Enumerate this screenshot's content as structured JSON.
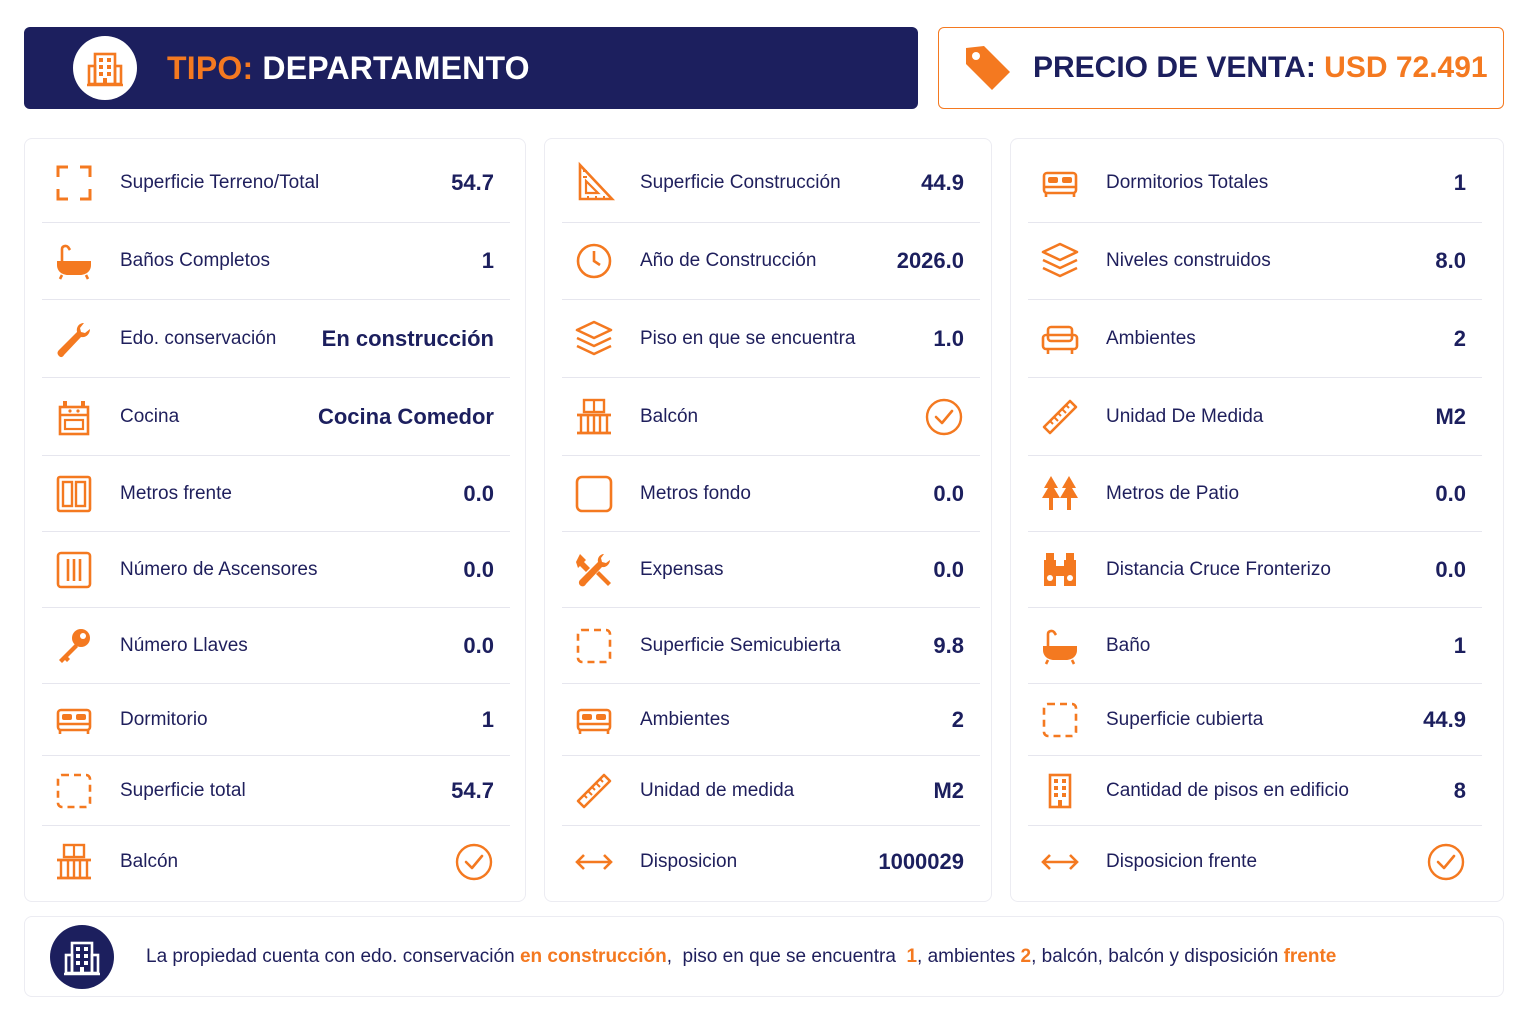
{
  "header": {
    "tipo_label": "TIPO:",
    "tipo_value": "DEPARTAMENTO",
    "icon": "building-icon"
  },
  "price": {
    "label": "PRECIO DE VENTA:",
    "value": "USD 72.491",
    "icon": "price-tag-icon"
  },
  "colors": {
    "navy": "#1c1f5e",
    "orange": "#f47920",
    "text": "#1f1f5c",
    "divider": "#e6e6ee"
  },
  "columns": [
    {
      "items": [
        {
          "label": "Superficie Terreno/Total",
          "value": "54.7",
          "icon": "area-corners-icon"
        },
        {
          "label": "Baños Completos",
          "value": "1",
          "icon": "bathtub-icon"
        },
        {
          "label": "Edo. conservación",
          "value": "En construcción",
          "icon": "wrench-icon"
        },
        {
          "label": "Cocina",
          "value": "Cocina Comedor",
          "icon": "stove-icon"
        },
        {
          "label": "Metros frente",
          "value": "0.0",
          "icon": "double-door-icon"
        },
        {
          "label": "Número de Ascensores",
          "value": "0.0",
          "icon": "elevator-icon"
        },
        {
          "label": "Número Llaves",
          "value": "0.0",
          "icon": "key-icon"
        },
        {
          "label": "Dormitorio",
          "value": "1",
          "icon": "bed-icon"
        },
        {
          "label": "Superficie total",
          "value": "54.7",
          "icon": "dashed-square-icon"
        },
        {
          "label": "Balcón",
          "value": "",
          "icon": "balcony-icon",
          "check": true
        }
      ]
    },
    {
      "items": [
        {
          "label": "Superficie Construcción",
          "value": "44.9",
          "icon": "triangle-ruler-icon"
        },
        {
          "label": "Año de Construcción",
          "value": "2026.0",
          "icon": "clock-icon"
        },
        {
          "label": "Piso en que se encuentra",
          "value": "1.0",
          "icon": "layers-icon"
        },
        {
          "label": "Balcón",
          "value": "",
          "icon": "balcony-icon",
          "check": true
        },
        {
          "label": "Metros fondo",
          "value": "0.0",
          "icon": "square-icon"
        },
        {
          "label": "Expensas",
          "value": "0.0",
          "icon": "tools-icon"
        },
        {
          "label": "Superficie Semicubierta",
          "value": "9.8",
          "icon": "dashed-square-icon"
        },
        {
          "label": "Ambientes",
          "value": "2",
          "icon": "bed-icon"
        },
        {
          "label": "Unidad de medida",
          "value": "M2",
          "icon": "ruler-icon"
        },
        {
          "label": "Disposicion",
          "value": "1000029",
          "icon": "arrows-horizontal-icon"
        }
      ]
    },
    {
      "items": [
        {
          "label": "Dormitorios Totales",
          "value": "1",
          "icon": "bed-icon"
        },
        {
          "label": "Niveles construidos",
          "value": "8.0",
          "icon": "layers-icon"
        },
        {
          "label": "Ambientes",
          "value": "2",
          "icon": "sofa-icon"
        },
        {
          "label": "Unidad De Medida",
          "value": "M2",
          "icon": "ruler-icon"
        },
        {
          "label": "Metros de Patio",
          "value": "0.0",
          "icon": "trees-icon"
        },
        {
          "label": "Distancia Cruce Fronterizo",
          "value": "0.0",
          "icon": "binoculars-icon"
        },
        {
          "label": "Baño",
          "value": "1",
          "icon": "bathtub-icon"
        },
        {
          "label": "Superficie cubierta",
          "value": "44.9",
          "icon": "dashed-square-icon"
        },
        {
          "label": "Cantidad de pisos en edificio",
          "value": "8",
          "icon": "building-icon"
        },
        {
          "label": "Disposicion frente",
          "value": "",
          "icon": "arrows-horizontal-icon",
          "check": true
        }
      ]
    }
  ],
  "summary": {
    "icon": "building-icon",
    "segments": [
      {
        "text": "La propiedad cuenta con edo. conservación ",
        "highlight": false
      },
      {
        "text": "en construcción",
        "highlight": true
      },
      {
        "text": ",  piso en que se encuentra  ",
        "highlight": false
      },
      {
        "text": "1",
        "highlight": true
      },
      {
        "text": ", ambientes ",
        "highlight": false
      },
      {
        "text": "2",
        "highlight": true
      },
      {
        "text": ", balcón, balcón y disposición ",
        "highlight": false
      },
      {
        "text": "frente",
        "highlight": true
      }
    ]
  }
}
